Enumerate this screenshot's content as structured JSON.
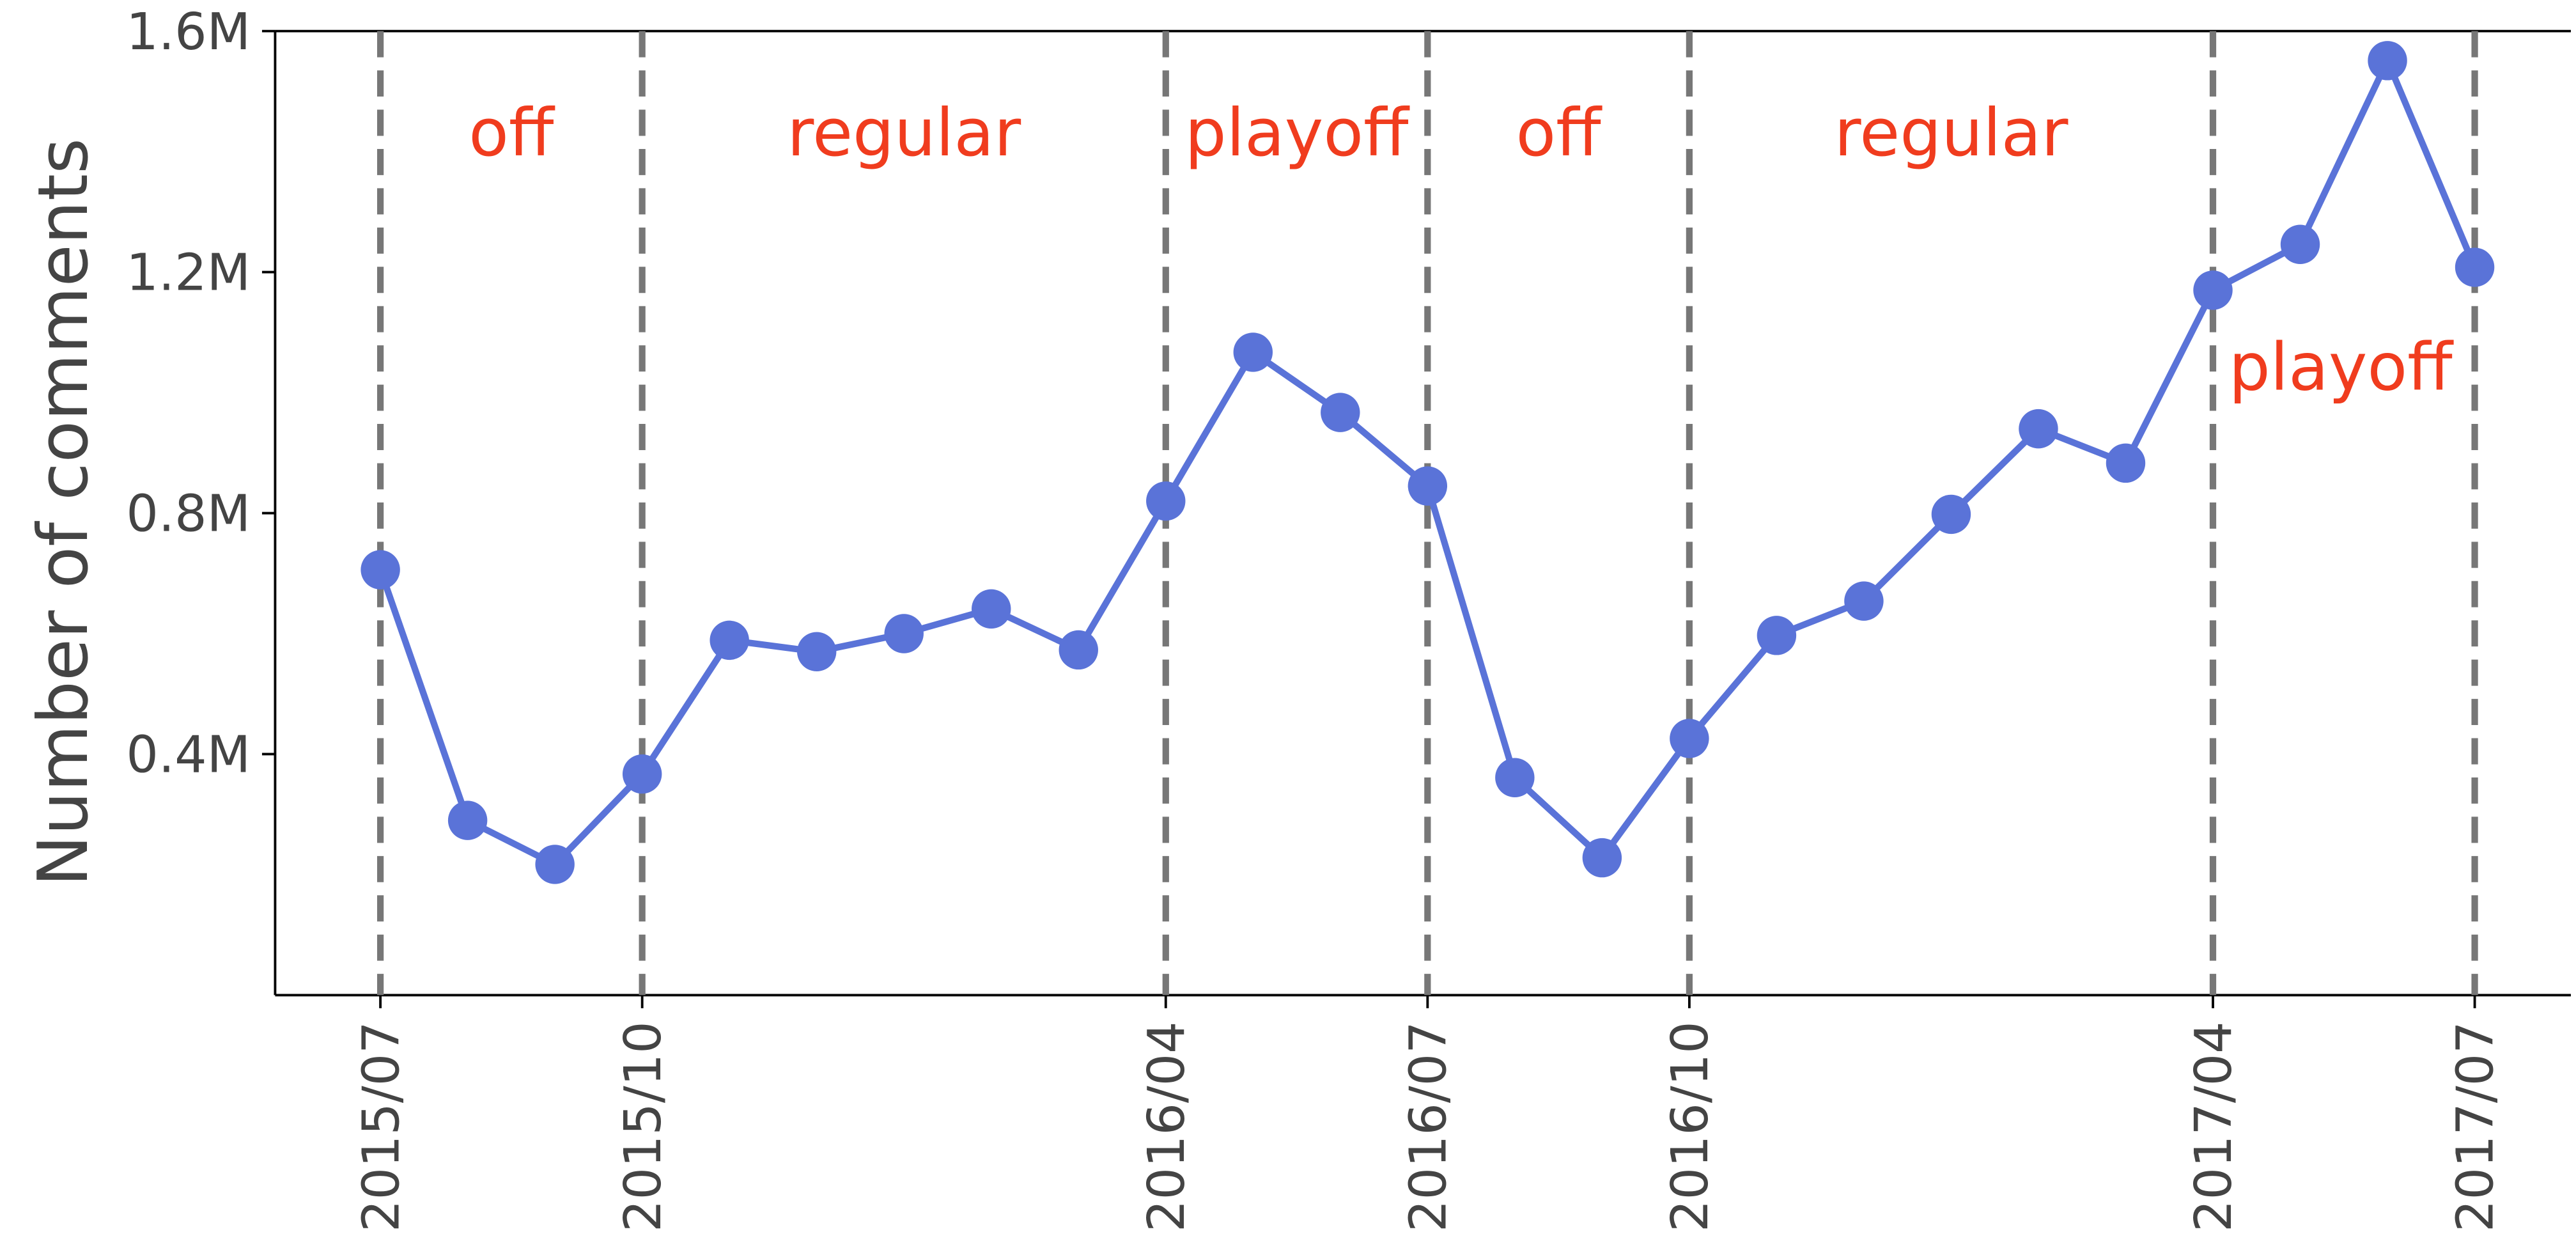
{
  "chart_data": {
    "type": "line",
    "ylabel": "Number of comments",
    "x": [
      "2015/07",
      "2015/08",
      "2015/09",
      "2015/10",
      "2015/11",
      "2015/12",
      "2016/01",
      "2016/02",
      "2016/03",
      "2016/04",
      "2016/05",
      "2016/06",
      "2016/07",
      "2016/08",
      "2016/09",
      "2016/10",
      "2016/11",
      "2016/12",
      "2017/01",
      "2017/02",
      "2017/03",
      "2017/04",
      "2017/05",
      "2017/06",
      "2017/07"
    ],
    "series": [
      {
        "name": "comments",
        "color": "#5a73d8",
        "values": [
          706000,
          290000,
          217000,
          367000,
          589000,
          570000,
          600000,
          641000,
          573000,
          820000,
          1067000,
          967000,
          845000,
          361000,
          228000,
          426000,
          597000,
          654000,
          798000,
          940000,
          883000,
          1170000,
          1246000,
          1551000,
          1208000
        ]
      }
    ],
    "xlim": [
      "2015/06",
      "2017/08"
    ],
    "xticks": [
      "2015/07",
      "2015/10",
      "2016/04",
      "2016/07",
      "2016/10",
      "2017/04",
      "2017/07"
    ],
    "ylim": [
      0,
      1600000
    ],
    "yticks": [
      {
        "value": 400000,
        "label": "0.4M"
      },
      {
        "value": 800000,
        "label": "0.8M"
      },
      {
        "value": 1200000,
        "label": "1.2M"
      },
      {
        "value": 1600000,
        "label": "1.6M"
      }
    ],
    "annotations": [
      "off",
      "regular",
      "playoff",
      "off",
      "regular",
      "playoff"
    ],
    "annotation_color": "#f03c1e"
  }
}
